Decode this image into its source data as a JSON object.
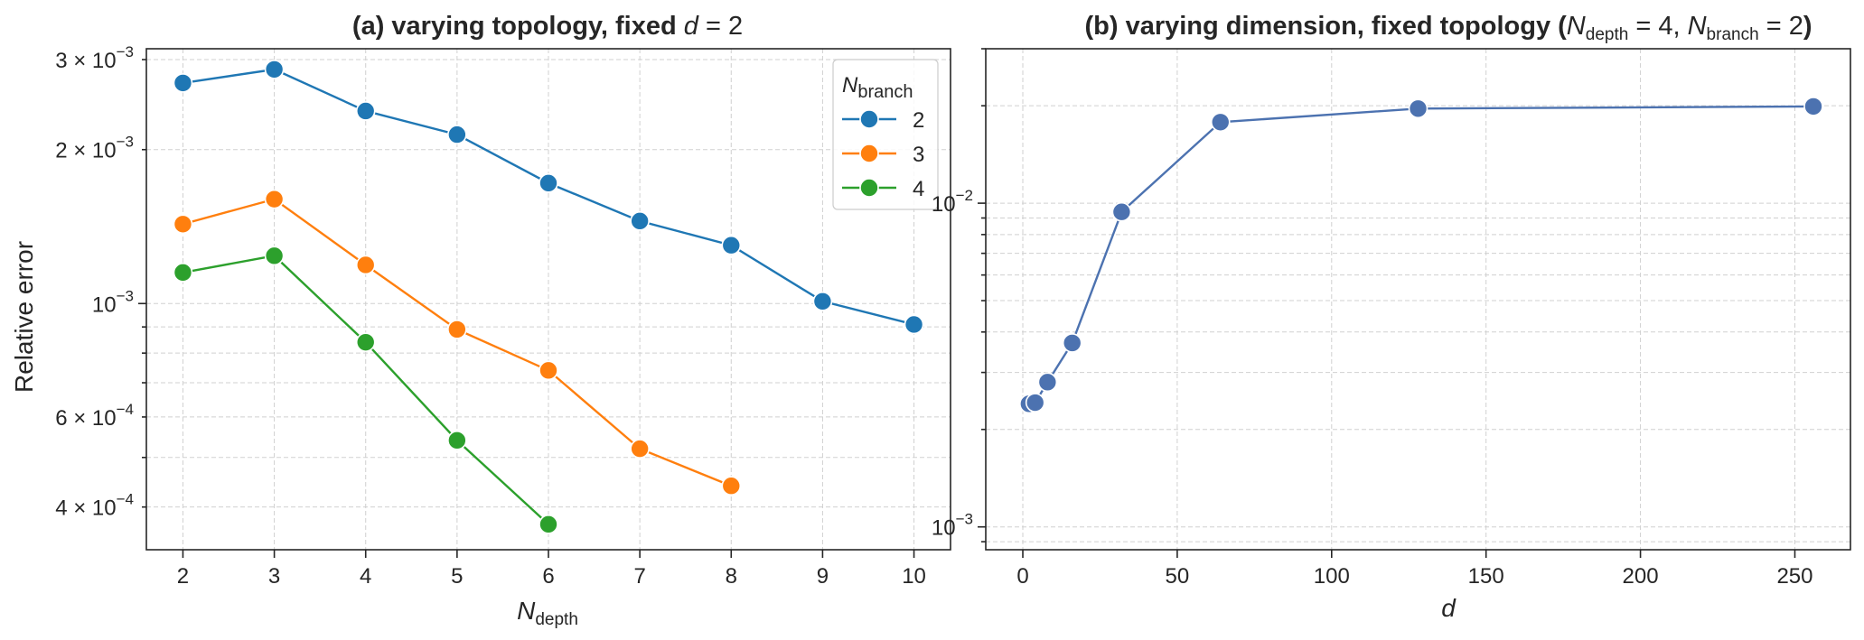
{
  "chart_data": [
    {
      "type": "line",
      "panel": "a",
      "title": "(a) varying topology, fixed ",
      "title_math": "d = 2",
      "xlabel": "N",
      "xlabel_sub": "depth",
      "ylabel": "Relative error",
      "yscale": "log",
      "ylim": [
        0.00033,
        0.00315
      ],
      "xlim": [
        1.6,
        10.4
      ],
      "x_ticks": [
        2,
        3,
        4,
        5,
        6,
        7,
        8,
        9,
        10
      ],
      "y_ticks": [
        {
          "value": 0.003,
          "mant": "3 × 10",
          "exp": "−3"
        },
        {
          "value": 0.002,
          "mant": "2 × 10",
          "exp": "−3"
        },
        {
          "value": 0.001,
          "mant": "10",
          "exp": "−3"
        },
        {
          "value": 0.0006,
          "mant": "6 × 10",
          "exp": "−4"
        },
        {
          "value": 0.0004,
          "mant": "4 × 10",
          "exp": "−4"
        }
      ],
      "legend": {
        "title": "N",
        "title_sub": "branch",
        "position": "top-right"
      },
      "series": [
        {
          "name": "2",
          "color": "#1f77b4",
          "x": [
            2,
            3,
            4,
            5,
            6,
            7,
            8,
            9,
            10
          ],
          "values": [
            0.0027,
            0.00287,
            0.00238,
            0.00214,
            0.00172,
            0.00145,
            0.0013,
            0.00101,
            0.00091
          ]
        },
        {
          "name": "3",
          "color": "#ff7f0e",
          "x": [
            2,
            3,
            4,
            5,
            6,
            7,
            8
          ],
          "values": [
            0.00143,
            0.0016,
            0.00119,
            0.00089,
            0.00074,
            0.00052,
            0.00044
          ]
        },
        {
          "name": "4",
          "color": "#2ca02c",
          "x": [
            2,
            3,
            4,
            5,
            6
          ],
          "values": [
            0.00115,
            0.00124,
            0.00084,
            0.00054,
            0.00037
          ]
        }
      ]
    },
    {
      "type": "line",
      "panel": "b",
      "title": "(b) varying dimension, fixed topology (",
      "title_math": "N_depth = 4, N_branch = 2",
      "title_end": ")",
      "xlabel": "d",
      "ylabel": "",
      "yscale": "log",
      "ylim": [
        0.00085,
        0.03
      ],
      "xlim": [
        -12,
        268
      ],
      "x_ticks": [
        0,
        50,
        100,
        150,
        200,
        250
      ],
      "y_ticks": [
        {
          "value": 0.01,
          "mant": "10",
          "exp": "−2"
        },
        {
          "value": 0.001,
          "mant": "10",
          "exp": "−3"
        }
      ],
      "series": [
        {
          "name": "N_depth=4, N_branch=2",
          "color": "#4c72b0",
          "x": [
            2,
            4,
            8,
            16,
            32,
            64,
            128,
            256
          ],
          "values": [
            0.0024,
            0.00242,
            0.0028,
            0.0037,
            0.0094,
            0.0178,
            0.0196,
            0.0199
          ]
        }
      ]
    }
  ]
}
